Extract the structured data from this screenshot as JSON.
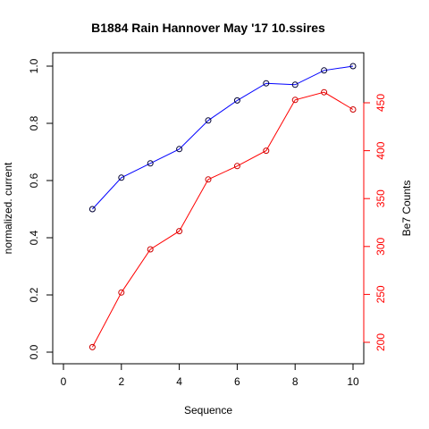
{
  "chart_data": {
    "type": "line",
    "title": "B1884 Rain Hannover May '17 10.ssires",
    "xlabel": "Sequence",
    "ylabel_left": "normalized. current",
    "ylabel_right": "Be7 Counts",
    "xlim": [
      0,
      10
    ],
    "ylim_left": [
      0.0,
      1.0
    ],
    "ylim_right": [
      195,
      462
    ],
    "x_ticks": [
      0,
      2,
      4,
      6,
      8,
      10
    ],
    "y_ticks_left": [
      0.0,
      0.2,
      0.4,
      0.6,
      0.8,
      1.0
    ],
    "y_ticks_right": [
      200,
      250,
      300,
      350,
      400,
      450
    ],
    "colors": {
      "left_series": "#0000ff",
      "right_series": "#ff0000",
      "right_axis": "#ff0000"
    },
    "series": [
      {
        "axis": "left",
        "x": [
          1,
          2,
          3,
          4,
          5,
          6,
          7,
          8,
          9,
          10
        ],
        "values": [
          0.5,
          0.61,
          0.66,
          0.71,
          0.81,
          0.88,
          0.94,
          0.935,
          0.985,
          1.0
        ]
      },
      {
        "axis": "right",
        "x": [
          1,
          2,
          3,
          4,
          5,
          6,
          7,
          8,
          9,
          10
        ],
        "values": [
          195,
          252,
          297,
          316,
          370,
          384,
          400,
          453,
          461,
          443
        ]
      }
    ],
    "grid": false,
    "legend": "none"
  }
}
